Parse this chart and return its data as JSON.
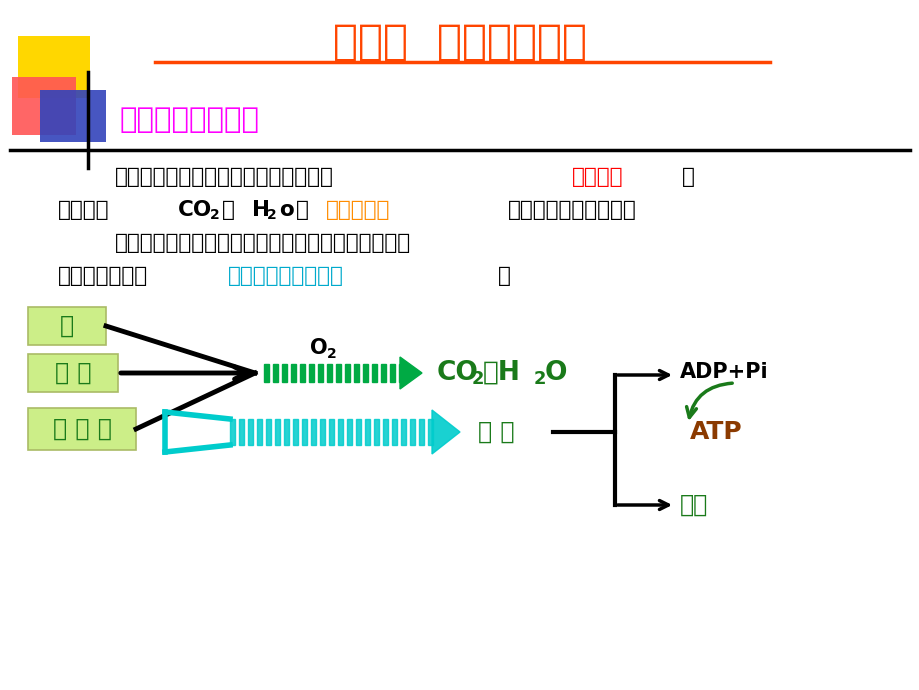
{
  "title": "第一节  生物氧化概述",
  "title_color": "#FF4500",
  "bg_color": "#FFFFFF",
  "section_title": "一、生物氧化概念",
  "section_title_color": "#FF00FF",
  "line1_main": "生物细胞将糖、脂、蛋白质等燃料分子",
  "line1_red": "氧化分解",
  "line1_end": "，",
  "line2_start": "最终生成",
  "line2_co2": "CO",
  "line2_sub2a": "2",
  "line2_he": "和",
  "line2_h2o_h": "H",
  "line2_sub2b": "2",
  "line2_h2o_o": "o",
  "line2_bing": "并",
  "line2_orange": "释放出能量",
  "line2_end": "的作用称为生物氧化。",
  "line3": "生物氧化包含了细胞呼吸作用中的一系列氧化还原反",
  "line4_start": "应，所以又称为",
  "line4_cyan": "细胞氧化或细胞呼吸",
  "line4_end": "。",
  "label_tang": "糖",
  "label_zhifang": "脂 肪",
  "label_danbaizhi": "蛋 白 质",
  "label_o2": "O",
  "label_co2h2o_co": "CO",
  "label_co2h2o_he": "和H",
  "label_co2h2o_o": "O",
  "label_neng": "能 量",
  "label_adppi": "ADP+Pi",
  "label_atp": "ATP",
  "label_rena": "热能",
  "green_box_color": "#CCEE88",
  "green_box_edge": "#AABB66",
  "green_text_color": "#1A7A1A",
  "cyan_color": "#00CCCC",
  "green_arrow_color": "#00AA44",
  "black_color": "#000000",
  "orange_color": "#FF8C00",
  "red_color": "#FF0000",
  "cyan_text_color": "#00AACC",
  "atp_color": "#8B3A00",
  "dark_green": "#006400"
}
